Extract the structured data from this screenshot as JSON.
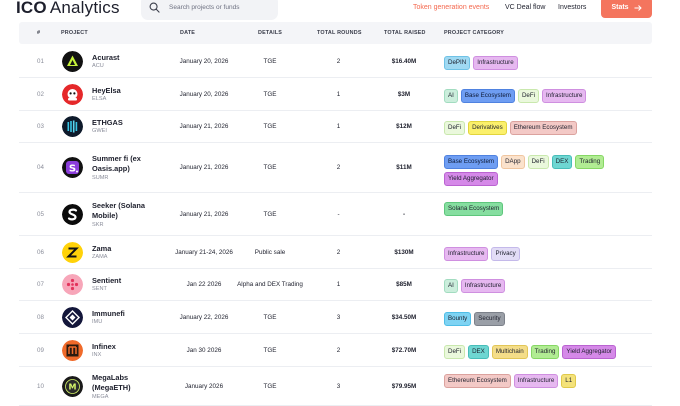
{
  "header": {
    "logo_ico": "ICO",
    "logo_rest": "Analytics",
    "search_placeholder": "Search projects or funds",
    "nav": {
      "tge": "Token generation events",
      "vc": "VC Deal flow",
      "investors": "Investors"
    },
    "stats_label": "Stats"
  },
  "columns": [
    "#",
    "PROJECT",
    "DATE",
    "DETAILS",
    "TOTAL ROUNDS",
    "TOTAL RAISED",
    "PROJECT CATEGORY"
  ],
  "rows": [
    {
      "num": "01",
      "name": "Acurast",
      "ticker": "ACU",
      "date": "January 20, 2026",
      "details": "TGE",
      "rounds": "2",
      "raised": "$16.40M",
      "tags": [
        {
          "label": "DePIN",
          "cls": "t-depin"
        },
        {
          "label": "Infrastructure",
          "cls": "t-infra"
        }
      ],
      "logo_icon": "acurast-logo-icon"
    },
    {
      "num": "02",
      "name": "HeyElsa",
      "ticker": "ELSA",
      "date": "January 20, 2026",
      "details": "TGE",
      "rounds": "1",
      "raised": "$3M",
      "tags": [
        {
          "label": "AI",
          "cls": "t-ai"
        },
        {
          "label": "Base Ecosystem",
          "cls": "t-base"
        },
        {
          "label": "DeFi",
          "cls": "t-defi"
        },
        {
          "label": "Infrastructure",
          "cls": "t-infra"
        }
      ],
      "logo_icon": "heyelsa-logo-icon"
    },
    {
      "num": "03",
      "name": "ETHGAS",
      "ticker": "GWEI",
      "date": "January 21, 2026",
      "details": "TGE",
      "rounds": "1",
      "raised": "$12M",
      "tags": [
        {
          "label": "DeFi",
          "cls": "t-defi"
        },
        {
          "label": "Derivatives",
          "cls": "t-deriv"
        },
        {
          "label": "Ethereum Ecosystem",
          "cls": "t-eth"
        }
      ],
      "logo_icon": "ethgas-logo-icon"
    },
    {
      "num": "04",
      "name": "Summer fi (ex Oasis.app)",
      "ticker": "SUMR",
      "date": "January 21, 2026",
      "details": "TGE",
      "rounds": "2",
      "raised": "$11M",
      "tags": [
        {
          "label": "Base Ecosystem",
          "cls": "t-base"
        },
        {
          "label": "DApp",
          "cls": "t-dapp"
        },
        {
          "label": "DeFi",
          "cls": "t-defi"
        },
        {
          "label": "DEX",
          "cls": "t-dex"
        },
        {
          "label": "Trading",
          "cls": "t-trading"
        },
        {
          "label": "Yield Aggregator",
          "cls": "t-yield"
        }
      ],
      "logo_icon": "summer-fi-logo-icon"
    },
    {
      "num": "05",
      "name": "Seeker (Solana Mobile)",
      "ticker": "SKR",
      "date": "January 21, 2026",
      "details": "TGE",
      "rounds": "-",
      "raised": "-",
      "tags": [
        {
          "label": "Solana Ecosystem",
          "cls": "t-sol"
        }
      ],
      "logo_icon": "seeker-logo-icon"
    },
    {
      "num": "06",
      "name": "Zama",
      "ticker": "ZAMA",
      "date": "January 21-24, 2026",
      "details": "Public sale",
      "rounds": "2",
      "raised": "$130M",
      "tags": [
        {
          "label": "Infrastructure",
          "cls": "t-infra"
        },
        {
          "label": "Privacy",
          "cls": "t-priv"
        }
      ],
      "logo_icon": "zama-logo-icon"
    },
    {
      "num": "07",
      "name": "Sentient",
      "ticker": "SENT",
      "date": "Jan 22 2026",
      "details": "Alpha and DEX Trading",
      "rounds": "1",
      "raised": "$85M",
      "tags": [
        {
          "label": "AI",
          "cls": "t-ai"
        },
        {
          "label": "Infrastructure",
          "cls": "t-infra"
        }
      ],
      "logo_icon": "sentient-logo-icon"
    },
    {
      "num": "08",
      "name": "Immunefi",
      "ticker": "IMU",
      "date": "January 22, 2026",
      "details": "TGE",
      "rounds": "3",
      "raised": "$34.50M",
      "tags": [
        {
          "label": "Bounty",
          "cls": "t-bounty"
        },
        {
          "label": "Security",
          "cls": "t-sec"
        }
      ],
      "logo_icon": "immunefi-logo-icon"
    },
    {
      "num": "09",
      "name": "Infinex",
      "ticker": "INX",
      "date": "Jan 30 2026",
      "details": "TGE",
      "rounds": "2",
      "raised": "$72.70M",
      "tags": [
        {
          "label": "DeFi",
          "cls": "t-defi"
        },
        {
          "label": "DEX",
          "cls": "t-dex"
        },
        {
          "label": "Multichain",
          "cls": "t-multi"
        },
        {
          "label": "Trading",
          "cls": "t-trading"
        },
        {
          "label": "Yield Aggregator",
          "cls": "t-yield"
        }
      ],
      "logo_icon": "infinex-logo-icon"
    },
    {
      "num": "10",
      "name": "MegaLabs (MegaETH)",
      "ticker": "MEGA",
      "date": "January 2026",
      "details": "TGE",
      "rounds": "3",
      "raised": "$79.95M",
      "tags": [
        {
          "label": "Ethereum Ecosystem",
          "cls": "t-eth"
        },
        {
          "label": "Infrastructure",
          "cls": "t-infra"
        },
        {
          "label": "L1",
          "cls": "t-l1"
        }
      ],
      "logo_icon": "megaeth-logo-icon"
    }
  ]
}
